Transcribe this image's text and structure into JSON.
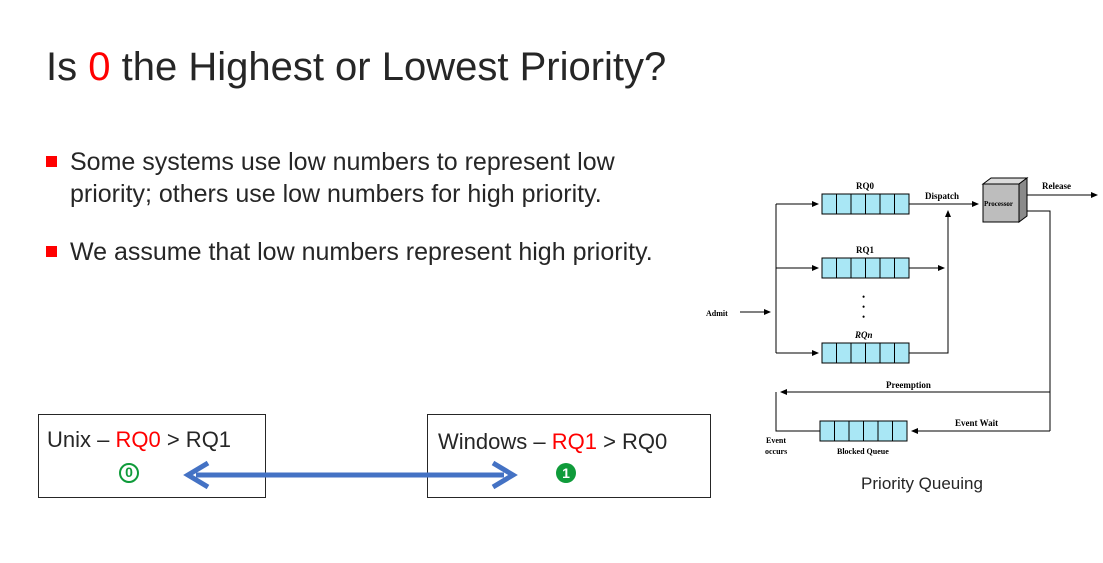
{
  "title": {
    "prefix": "Is ",
    "highlight": "0",
    "suffix": " the Highest or Lowest Priority?"
  },
  "bullets": [
    "Some systems use low numbers to represent low priority; others use low numbers for high priority.",
    "We assume that low numbers represent high priority."
  ],
  "unix_box": {
    "os": "Unix",
    "dash": " – ",
    "first": "RQ0",
    "rest": " > RQ1",
    "badge": "0"
  },
  "windows_box": {
    "os": "Windows",
    "dash": " – ",
    "first": "RQ1",
    "rest": " > RQ0",
    "badge": "1"
  },
  "diagram": {
    "rq0": "RQ0",
    "rq1": "RQ1",
    "rqn": "RQn",
    "dispatch": "Dispatch",
    "processor": "Processor",
    "release": "Release",
    "admit": "Admit",
    "preemption": "Preemption",
    "event_wait": "Event Wait",
    "event_occurs_1": "Event",
    "event_occurs_2": "occurs",
    "blocked_queue": "Blocked Queue",
    "dots": "•"
  },
  "caption": "Priority Queuing",
  "colors": {
    "accent_red": "#ff0000",
    "arrow_blue": "#4472c4",
    "badge_green": "#0f9b3a",
    "queue_fill": "#a9e7f5"
  }
}
